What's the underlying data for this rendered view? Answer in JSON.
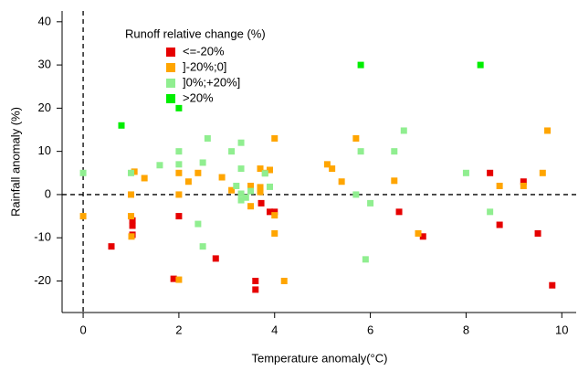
{
  "chart_data": {
    "type": "scatter",
    "x_label": "Temperature anomaly(°C)",
    "y_label": "Rainfall anomaly (%)",
    "legend_title": "Runoff relative change (%)",
    "xlim": [
      -0.44,
      10.3
    ],
    "ylim": [
      -27.3,
      42.5
    ],
    "xticks": [
      0,
      2,
      4,
      6,
      8,
      10
    ],
    "yticks": [
      -20,
      -10,
      0,
      10,
      20,
      30,
      40
    ],
    "series": [
      {
        "name": "<=-20%",
        "color": "#e60000",
        "x": [
          0.59,
          1.03,
          1.03,
          1.03,
          1.89,
          2.0,
          2.77,
          3.6,
          3.6,
          3.72,
          3.9,
          4.0,
          6.6,
          7.1,
          8.5,
          8.7,
          9.2,
          9.5,
          9.8
        ],
        "values": [
          -12,
          -6,
          -7.2,
          -9.3,
          -19.5,
          -5,
          -14.8,
          -20,
          -22,
          -2,
          -4,
          -4,
          -4,
          -9.7,
          5,
          -7,
          3,
          -9,
          -21
        ]
      },
      {
        "name": "]-20%;0]",
        "color": "#ffa500",
        "x": [
          0,
          1.01,
          1.07,
          1.0,
          1.0,
          1.28,
          2.0,
          2.0,
          2.0,
          2.2,
          2.4,
          2.9,
          3.1,
          3.5,
          3.5,
          3.7,
          3.7,
          3.7,
          3.8,
          3.9,
          4.0,
          4.0,
          4.0,
          4.2,
          5.1,
          5.2,
          5.4,
          5.7,
          6.5,
          7.0,
          8.7,
          9.2,
          9.6,
          9.7
        ],
        "values": [
          -5,
          -9.7,
          5.3,
          -5,
          0,
          3.8,
          5,
          0,
          -19.7,
          3,
          5,
          4,
          1,
          2,
          -2.7,
          6,
          1.7,
          0.6,
          5,
          5.7,
          13,
          -4.8,
          -9,
          -20,
          7,
          6,
          3,
          13,
          3.2,
          -9,
          2,
          2,
          5,
          14.8
        ]
      },
      {
        "name": "]0%;+20%]",
        "color": "#90ee90",
        "x": [
          0,
          1.0,
          1.6,
          2.0,
          2.0,
          2.4,
          2.5,
          2.5,
          2.6,
          3.1,
          3.2,
          3.3,
          3.3,
          3.3,
          3.3,
          3.4,
          3.5,
          3.8,
          3.9,
          5.7,
          5.8,
          5.9,
          6.0,
          6.5,
          6.7,
          8.0,
          8.5
        ],
        "values": [
          5,
          5,
          6.8,
          10,
          7,
          -6.8,
          7.4,
          -12,
          13,
          10,
          2,
          -1.3,
          0.2,
          6,
          12,
          -0.7,
          0.8,
          4.9,
          1.8,
          0,
          10,
          -15,
          -2,
          10,
          14.8,
          5,
          -4
        ]
      },
      {
        "name": ">20%",
        "color": "#00ee00",
        "x": [
          0.8,
          2.0,
          5.8,
          8.3
        ],
        "values": [
          16,
          20,
          30,
          30
        ]
      }
    ]
  }
}
